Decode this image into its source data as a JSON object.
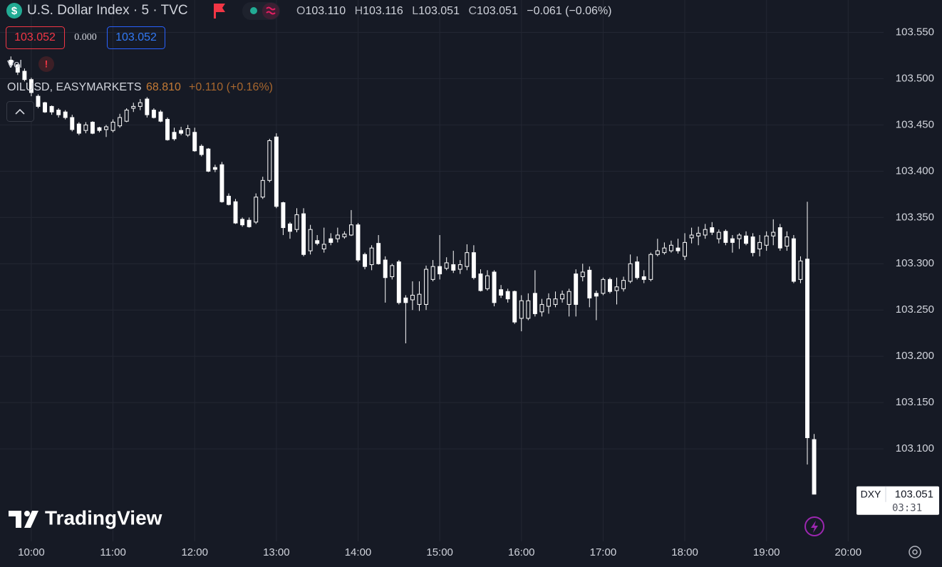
{
  "chart_data": {
    "type": "candlestick",
    "color": "#ffffff",
    "background": "#161a25",
    "grid": true,
    "xlim": [
      "09:37",
      "20:26"
    ],
    "xticks": [
      "10:00",
      "11:00",
      "12:00",
      "13:00",
      "14:00",
      "15:00",
      "16:00",
      "17:00",
      "18:00",
      "19:00",
      "20:00"
    ],
    "ylim": [
      103.0,
      103.585
    ],
    "yticks": [
      {
        "value": 103.1,
        "label": "103.100"
      },
      {
        "value": 103.15,
        "label": "103.150"
      },
      {
        "value": 103.2,
        "label": "103.200"
      },
      {
        "value": 103.25,
        "label": "103.250"
      },
      {
        "value": 103.3,
        "label": "103.300"
      },
      {
        "value": 103.35,
        "label": "103.350"
      },
      {
        "value": 103.4,
        "label": "103.400"
      },
      {
        "value": 103.45,
        "label": "103.450"
      },
      {
        "value": 103.5,
        "label": "103.500"
      },
      {
        "value": 103.55,
        "label": "103.550"
      }
    ],
    "x": [
      "09:45",
      "09:50",
      "09:55",
      "10:00",
      "10:05",
      "10:10",
      "10:15",
      "10:20",
      "10:25",
      "10:30",
      "10:35",
      "10:40",
      "10:45",
      "10:50",
      "10:55",
      "11:00",
      "11:05",
      "11:10",
      "11:15",
      "11:20",
      "11:25",
      "11:30",
      "11:35",
      "11:40",
      "11:45",
      "11:50",
      "11:55",
      "12:00",
      "12:05",
      "12:10",
      "12:15",
      "12:20",
      "12:25",
      "12:30",
      "12:35",
      "12:40",
      "12:45",
      "12:50",
      "12:55",
      "13:00",
      "13:05",
      "13:10",
      "13:15",
      "13:20",
      "13:25",
      "13:30",
      "13:35",
      "13:40",
      "13:45",
      "13:50",
      "13:55",
      "14:00",
      "14:05",
      "14:10",
      "14:15",
      "14:20",
      "14:25",
      "14:30",
      "14:35",
      "14:40",
      "14:45",
      "14:50",
      "14:55",
      "15:00",
      "15:05",
      "15:10",
      "15:15",
      "15:20",
      "15:25",
      "15:30",
      "15:35",
      "15:40",
      "15:45",
      "15:50",
      "15:55",
      "16:00",
      "16:05",
      "16:10",
      "16:15",
      "16:20",
      "16:25",
      "16:30",
      "16:35",
      "16:40",
      "16:45",
      "16:50",
      "16:55",
      "17:00",
      "17:05",
      "17:10",
      "17:15",
      "17:20",
      "17:25",
      "17:30",
      "17:35",
      "17:40",
      "17:45",
      "17:50",
      "17:55",
      "18:00",
      "18:05",
      "18:10",
      "18:15",
      "18:20",
      "18:25",
      "18:30",
      "18:35",
      "18:40",
      "18:45",
      "18:50",
      "18:55",
      "19:00",
      "19:05",
      "19:10",
      "19:15",
      "19:20",
      "19:25",
      "19:30",
      "19:35"
    ],
    "open": [
      103.52,
      103.515,
      103.508,
      103.499,
      103.481,
      103.474,
      103.47,
      103.466,
      103.464,
      103.458,
      103.451,
      103.444,
      103.453,
      103.447,
      103.445,
      103.444,
      103.449,
      103.454,
      103.468,
      103.47,
      103.478,
      103.466,
      103.464,
      103.456,
      103.442,
      103.444,
      103.439,
      103.442,
      103.427,
      103.424,
      103.404,
      103.407,
      103.373,
      103.367,
      103.348,
      103.347,
      103.345,
      103.372,
      103.39,
      103.437,
      103.366,
      103.343,
      103.337,
      103.354,
      103.314,
      103.325,
      103.316,
      103.327,
      103.327,
      103.329,
      103.331,
      103.342,
      103.31,
      103.299,
      103.322,
      103.304,
      103.286,
      103.302,
      103.263,
      103.261,
      103.256,
      103.256,
      103.283,
      103.297,
      103.295,
      103.299,
      103.294,
      103.297,
      103.312,
      103.289,
      103.273,
      103.291,
      103.272,
      103.27,
      103.27,
      103.241,
      103.241,
      103.268,
      103.248,
      103.254,
      103.256,
      103.262,
      103.256,
      103.289,
      103.286,
      103.293,
      103.268,
      103.268,
      103.283,
      103.271,
      103.273,
      103.281,
      103.302,
      103.286,
      103.283,
      103.31,
      103.312,
      103.314,
      103.317,
      103.308,
      103.328,
      103.33,
      103.331,
      103.339,
      103.327,
      103.335,
      103.327,
      103.327,
      103.33,
      103.329,
      103.316,
      103.32,
      103.33,
      103.339,
      103.319,
      103.327,
      103.283,
      103.305,
      103.11
    ],
    "high": [
      103.524,
      103.516,
      103.511,
      103.501,
      103.483,
      103.475,
      103.471,
      103.468,
      103.466,
      103.461,
      103.453,
      103.453,
      103.454,
      103.448,
      103.45,
      103.456,
      103.462,
      103.468,
      103.474,
      103.478,
      103.48,
      103.468,
      103.466,
      103.458,
      103.447,
      103.448,
      103.45,
      103.447,
      103.429,
      103.425,
      103.407,
      103.41,
      103.376,
      103.37,
      103.35,
      103.35,
      103.376,
      103.394,
      103.435,
      103.441,
      103.367,
      103.345,
      103.36,
      103.36,
      103.342,
      103.331,
      103.339,
      103.333,
      103.339,
      103.335,
      103.358,
      103.344,
      103.312,
      103.32,
      103.331,
      103.308,
      103.3,
      103.304,
      103.266,
      103.281,
      103.281,
      103.298,
      103.304,
      103.331,
      103.307,
      103.314,
      103.304,
      103.321,
      103.32,
      103.294,
      103.293,
      103.293,
      103.277,
      103.273,
      103.271,
      103.266,
      103.268,
      103.293,
      103.262,
      103.268,
      103.27,
      103.271,
      103.273,
      103.294,
      103.3,
      103.297,
      103.271,
      103.285,
      103.285,
      103.285,
      103.286,
      103.31,
      103.308,
      103.293,
      103.312,
      103.327,
      103.323,
      103.325,
      103.327,
      103.333,
      103.339,
      103.34,
      103.343,
      103.345,
      103.337,
      103.337,
      103.331,
      103.333,
      103.335,
      103.333,
      103.331,
      103.335,
      103.348,
      103.343,
      103.335,
      103.331,
      103.308,
      103.367,
      103.116
    ],
    "low": [
      103.512,
      103.504,
      103.497,
      103.481,
      103.468,
      103.463,
      103.461,
      103.458,
      103.456,
      103.443,
      103.439,
      103.441,
      103.44,
      103.442,
      103.437,
      103.442,
      103.447,
      103.453,
      103.464,
      103.466,
      103.458,
      103.457,
      103.453,
      103.433,
      103.433,
      103.439,
      103.437,
      103.421,
      103.416,
      103.399,
      103.399,
      103.366,
      103.363,
      103.343,
      103.34,
      103.339,
      103.343,
      103.37,
      103.388,
      103.36,
      103.331,
      103.327,
      103.334,
      103.308,
      103.31,
      103.32,
      103.312,
      103.32,
      103.323,
      103.327,
      103.33,
      103.302,
      103.294,
      103.293,
      103.299,
      103.258,
      103.283,
      103.256,
      103.214,
      103.25,
      103.249,
      103.25,
      103.281,
      103.283,
      103.293,
      103.29,
      103.289,
      103.293,
      103.283,
      103.27,
      103.271,
      103.254,
      103.263,
      103.258,
      103.235,
      103.227,
      103.239,
      103.243,
      103.243,
      103.246,
      103.253,
      103.258,
      103.243,
      103.243,
      103.281,
      103.253,
      103.239,
      103.266,
      103.268,
      103.256,
      103.27,
      103.279,
      103.283,
      103.279,
      103.281,
      103.308,
      103.31,
      103.312,
      103.311,
      103.304,
      103.322,
      103.32,
      103.327,
      103.331,
      103.322,
      103.32,
      103.312,
      103.316,
      103.32,
      103.308,
      103.308,
      103.314,
      103.32,
      103.314,
      103.314,
      103.279,
      103.279,
      103.083,
      103.051
    ],
    "close": [
      103.515,
      103.507,
      103.499,
      103.485,
      103.47,
      103.464,
      103.464,
      103.461,
      103.458,
      103.445,
      103.441,
      103.45,
      103.441,
      103.444,
      103.448,
      103.453,
      103.458,
      103.466,
      103.47,
      103.474,
      103.461,
      103.458,
      103.454,
      103.434,
      103.435,
      103.441,
      103.446,
      103.422,
      103.418,
      103.4,
      103.402,
      103.367,
      103.364,
      103.344,
      103.342,
      103.34,
      103.372,
      103.39,
      103.433,
      103.362,
      103.339,
      103.335,
      103.353,
      103.31,
      103.337,
      103.322,
      103.321,
      103.323,
      103.331,
      103.332,
      103.342,
      103.304,
      103.297,
      103.317,
      103.3,
      103.285,
      103.298,
      103.258,
      103.258,
      103.266,
      103.267,
      103.294,
      103.297,
      103.289,
      103.301,
      103.293,
      103.299,
      103.312,
      103.285,
      103.271,
      103.287,
      103.258,
      103.266,
      103.262,
      103.237,
      103.26,
      103.26,
      103.246,
      103.256,
      103.262,
      103.262,
      103.267,
      103.27,
      103.256,
      103.291,
      103.263,
      103.265,
      103.283,
      103.27,
      103.275,
      103.282,
      103.3,
      103.285,
      103.283,
      103.31,
      103.314,
      103.317,
      103.32,
      103.314,
      103.323,
      103.331,
      103.333,
      103.337,
      103.334,
      103.334,
      103.323,
      103.323,
      103.331,
      103.322,
      103.312,
      103.323,
      103.33,
      103.334,
      103.317,
      103.329,
      103.281,
      103.303,
      103.112,
      103.051
    ],
    "last_label": {
      "symbol": "DXY",
      "value": 103.051,
      "countdown": "03:31"
    }
  },
  "legend": {
    "symbol_icon": "$",
    "title": "U.S. Dollar Index · 5 · TVC",
    "ohlc": [
      {
        "key": "O",
        "value": "103.110"
      },
      {
        "key": "H",
        "value": "103.116"
      },
      {
        "key": "L",
        "value": "103.051"
      },
      {
        "key": "C",
        "value": "103.051"
      }
    ],
    "change": "−0.061 (−0.06%)",
    "bid": "103.052",
    "spread": "0.000",
    "ask": "103.052"
  },
  "indicators": {
    "volume": "Vol",
    "volume_alert": "!",
    "compare": "OILUSD, EASYMARKETS",
    "compare_price": "68.810",
    "compare_change": "+0.110 (+0.16%)"
  },
  "branding": "TradingView"
}
